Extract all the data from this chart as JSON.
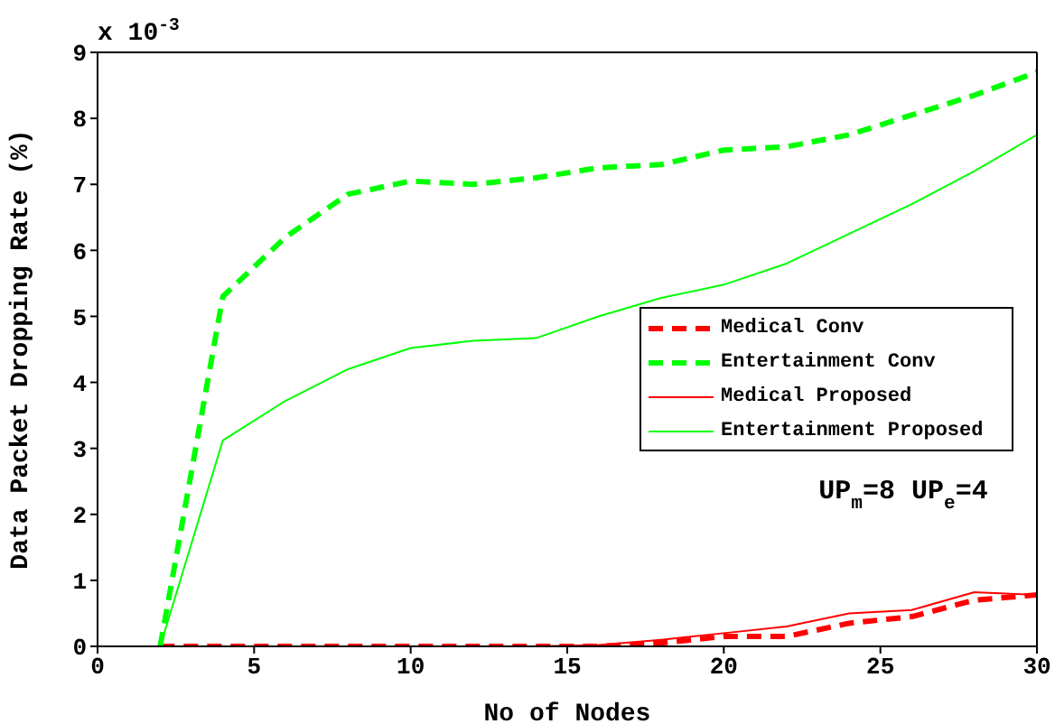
{
  "chart_data": {
    "type": "line",
    "xlabel": "No of Nodes",
    "ylabel": "Data Packet Dropping Rate (%)",
    "x": [
      2,
      4,
      6,
      8,
      10,
      12,
      14,
      16,
      18,
      20,
      22,
      24,
      26,
      28,
      30
    ],
    "series": [
      {
        "name": "Medical Conv",
        "color": "#ff0000",
        "line_style": "dashed",
        "values": [
          0,
          0,
          0,
          0,
          0,
          0,
          0,
          0,
          0.05,
          0.15,
          0.15,
          0.35,
          0.45,
          0.7,
          0.78
        ]
      },
      {
        "name": "Entertainment Conv",
        "color": "#00ff00",
        "line_style": "dashed",
        "values": [
          0,
          5.3,
          6.2,
          6.85,
          7.05,
          7.0,
          7.1,
          7.25,
          7.3,
          7.52,
          7.57,
          7.75,
          8.05,
          8.35,
          8.7
        ]
      },
      {
        "name": "Medical Proposed",
        "color": "#ff0000",
        "line_style": "solid",
        "values": [
          0,
          0,
          0,
          0,
          0,
          0,
          0,
          0.02,
          0.1,
          0.2,
          0.3,
          0.5,
          0.55,
          0.82,
          0.78
        ]
      },
      {
        "name": "Entertainment Proposed",
        "color": "#00ff00",
        "line_style": "solid",
        "values": [
          0,
          3.12,
          3.72,
          4.2,
          4.52,
          4.63,
          4.67,
          5.0,
          5.28,
          5.48,
          5.8,
          6.25,
          6.7,
          7.2,
          7.75
        ]
      }
    ],
    "xlim": [
      0,
      30
    ],
    "xticks": [
      0,
      5,
      10,
      15,
      20,
      25,
      30
    ],
    "ylim": [
      0,
      9
    ],
    "yticks": [
      0,
      1,
      2,
      3,
      4,
      5,
      6,
      7,
      8,
      9
    ],
    "grid": false,
    "legend": "right",
    "marker": "none",
    "annotations": [
      "x 10$^{-3}$",
      "UP$_{m}$=8  UP$_{e}$=4"
    ]
  }
}
